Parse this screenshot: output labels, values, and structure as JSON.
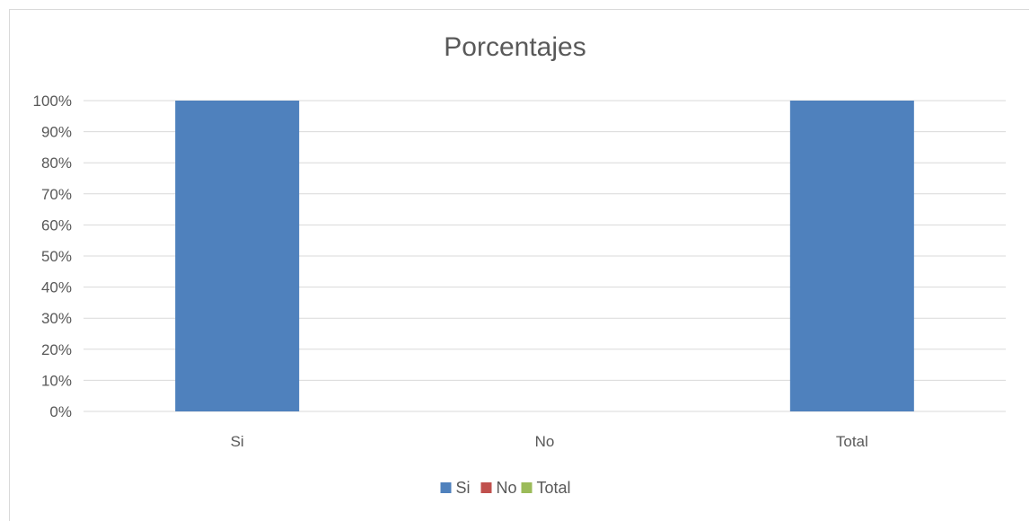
{
  "chart_data": {
    "type": "bar",
    "title": "Porcentajes",
    "categories": [
      "Si",
      "No",
      "Total"
    ],
    "series": [
      {
        "name": "Si",
        "color": "#4f81bd",
        "values": [
          100,
          null,
          null
        ]
      },
      {
        "name": "No",
        "color": "#c0504d",
        "values": [
          null,
          0,
          null
        ]
      },
      {
        "name": "Total",
        "color": "#9bbb59",
        "values": [
          null,
          null,
          null
        ]
      }
    ],
    "bar_values": [
      100,
      0,
      100
    ],
    "bar_colors": [
      "#4f81bd",
      "#4f81bd",
      "#4f81bd"
    ],
    "ylim": [
      0,
      100
    ],
    "yticks": [
      "0%",
      "10%",
      "20%",
      "30%",
      "40%",
      "50%",
      "60%",
      "70%",
      "80%",
      "90%",
      "100%"
    ],
    "grid": true,
    "legend_position": "bottom",
    "xlabel": "",
    "ylabel": ""
  }
}
